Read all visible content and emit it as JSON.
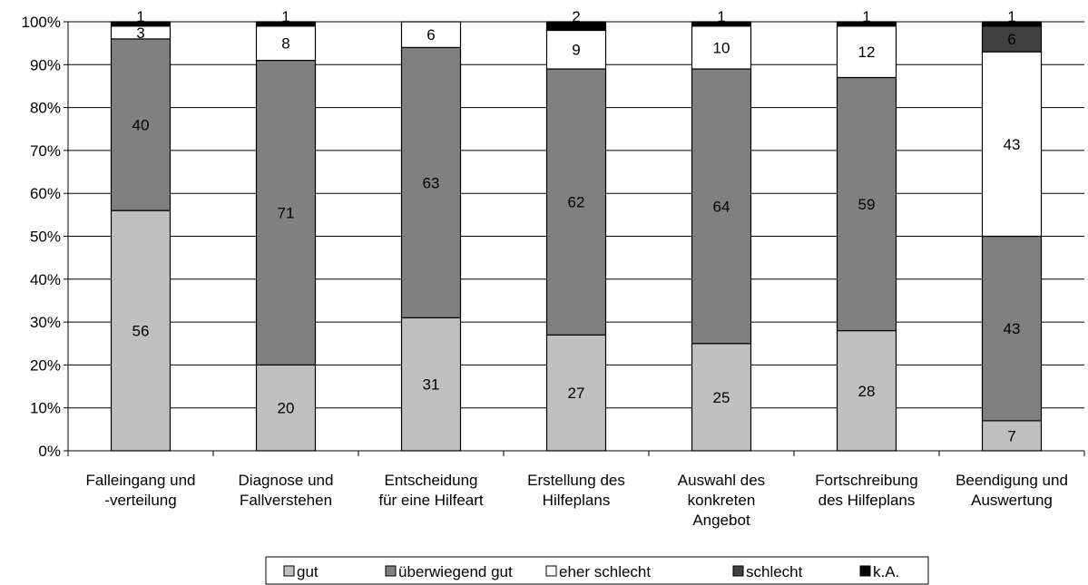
{
  "chart_data": {
    "type": "bar",
    "stacked": true,
    "title": "",
    "xlabel": "",
    "ylabel": "",
    "ylim": [
      0,
      100
    ],
    "y_tick_format": "percent",
    "grid": true,
    "legend_position": "bottom",
    "categories": [
      [
        "Falleingang und",
        "-verteilung"
      ],
      [
        "Diagnose und",
        "Fallverstehen"
      ],
      [
        "Entscheidung",
        "für eine Hilfeart"
      ],
      [
        "Erstellung des",
        "Hilfeplans"
      ],
      [
        "Auswahl des",
        "konkreten",
        "Angebot"
      ],
      [
        "Fortschreibung",
        "des Hilfeplans"
      ],
      [
        "Beendigung und",
        "Auswertung"
      ]
    ],
    "series": [
      {
        "name": "gut",
        "color": "#c0c0c0",
        "values": [
          56,
          20,
          31,
          27,
          25,
          28,
          7
        ]
      },
      {
        "name": "überwiegend gut",
        "color": "#808080",
        "values": [
          40,
          71,
          63,
          62,
          64,
          59,
          43
        ]
      },
      {
        "name": "eher schlecht",
        "color": "#ffffff",
        "values": [
          3,
          8,
          6,
          9,
          10,
          12,
          43
        ]
      },
      {
        "name": "schlecht",
        "color": "#404040",
        "values": [
          0,
          0,
          0,
          0,
          0,
          0,
          6
        ]
      },
      {
        "name": "k.A.",
        "color": "#000000",
        "values": [
          1,
          1,
          0,
          2,
          1,
          1,
          1
        ]
      }
    ],
    "value_labels": [
      [
        "56",
        "40",
        "3",
        "",
        "1"
      ],
      [
        "20",
        "71",
        "8",
        "",
        "1"
      ],
      [
        "31",
        "63",
        "6",
        "",
        ""
      ],
      [
        "27",
        "62",
        "9",
        "",
        "2"
      ],
      [
        "25",
        "64",
        "10",
        "",
        "1"
      ],
      [
        "28",
        "59",
        "12",
        "",
        "1"
      ],
      [
        "7",
        "43",
        "43",
        "6",
        "1"
      ]
    ]
  }
}
